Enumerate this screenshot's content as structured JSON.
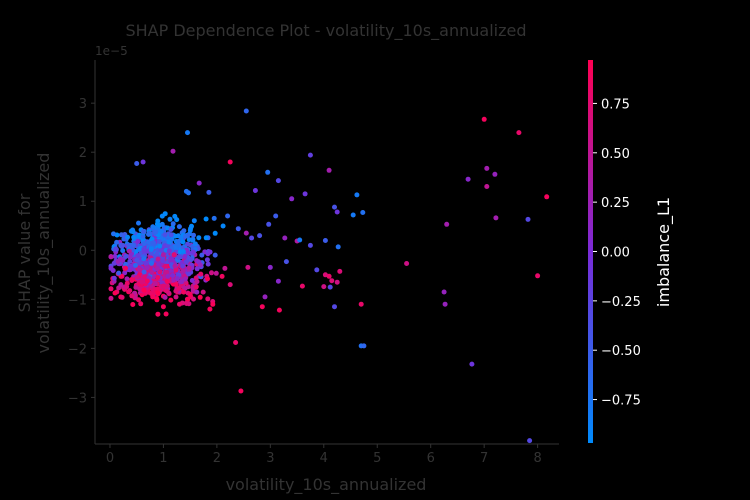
{
  "chart_data": {
    "type": "scatter",
    "title": "SHAP Dependence Plot - volatility_10s_annualized",
    "xlabel": "volatility_10s_annualized",
    "ylabel_lines": [
      "SHAP value for",
      "volatility_10s_annualized"
    ],
    "y_offset_label": "1e−5",
    "xlim": [
      -0.28,
      8.4
    ],
    "ylim": [
      -3.95,
      3.88
    ],
    "x_ticks": [
      0,
      1,
      2,
      3,
      4,
      5,
      6,
      7,
      8
    ],
    "y_ticks": [
      -3,
      -2,
      -1,
      0,
      1,
      2,
      3
    ],
    "x_tick_labels": [
      "0",
      "1",
      "2",
      "3",
      "4",
      "5",
      "6",
      "7",
      "8"
    ],
    "y_tick_labels": [
      "−3",
      "−2",
      "−1",
      "0",
      "1",
      "2",
      "3"
    ],
    "colorbar": {
      "label": "imbalance_L1",
      "range": [
        -0.97,
        0.97
      ],
      "ticks": [
        0.75,
        0.5,
        0.25,
        0.0,
        -0.25,
        -0.5,
        -0.75
      ],
      "tick_labels": [
        "0.75",
        "0.50",
        "0.25",
        "0.00",
        "−0.25",
        "−0.50",
        "−0.75"
      ],
      "low_color": "#008afb",
      "mid_color": "#7a2bd8",
      "high_color": "#ff0052"
    },
    "points": [
      [
        2.55,
        2.84,
        -0.6
      ],
      [
        1.45,
        2.4,
        -0.8
      ],
      [
        1.18,
        2.02,
        0.3
      ],
      [
        0.5,
        1.77,
        -0.5
      ],
      [
        0.62,
        1.8,
        -0.1
      ],
      [
        2.25,
        1.8,
        0.9
      ],
      [
        3.75,
        1.94,
        -0.2
      ],
      [
        4.1,
        1.63,
        0.3
      ],
      [
        2.95,
        1.59,
        -0.7
      ],
      [
        3.15,
        1.42,
        -0.3
      ],
      [
        1.67,
        1.37,
        0.1
      ],
      [
        1.43,
        1.2,
        -0.7
      ],
      [
        1.47,
        1.17,
        -0.7
      ],
      [
        1.85,
        1.18,
        -0.5
      ],
      [
        2.72,
        1.22,
        -0.1
      ],
      [
        3.4,
        1.05,
        0.1
      ],
      [
        3.65,
        1.15,
        -0.1
      ],
      [
        4.62,
        1.13,
        -0.8
      ],
      [
        4.2,
        0.88,
        -0.4
      ],
      [
        4.25,
        0.78,
        -0.1
      ],
      [
        4.55,
        0.72,
        -0.8
      ],
      [
        4.73,
        0.77,
        -0.7
      ],
      [
        3.1,
        0.7,
        -0.5
      ],
      [
        2.97,
        0.53,
        -0.4
      ],
      [
        2.8,
        0.3,
        -0.4
      ],
      [
        2.65,
        0.25,
        -0.3
      ],
      [
        3.5,
        0.19,
        0.4
      ],
      [
        3.27,
        0.25,
        0.2
      ],
      [
        3.55,
        0.21,
        -0.8
      ],
      [
        3.75,
        0.1,
        -0.3
      ],
      [
        4.03,
        0.2,
        -0.5
      ],
      [
        4.27,
        0.07,
        -0.7
      ],
      [
        3.3,
        -0.23,
        -0.4
      ],
      [
        3.0,
        -0.35,
        0.1
      ],
      [
        3.15,
        -0.63,
        0.1
      ],
      [
        3.6,
        -0.73,
        0.8
      ],
      [
        3.87,
        -0.4,
        -0.3
      ],
      [
        4.03,
        -0.5,
        0.7
      ],
      [
        4.1,
        -0.53,
        0.8
      ],
      [
        4.0,
        -0.74,
        0.6
      ],
      [
        4.15,
        -0.62,
        0.7
      ],
      [
        4.25,
        -0.65,
        0.6
      ],
      [
        4.12,
        -0.75,
        -0.3
      ],
      [
        4.3,
        -0.43,
        0.7
      ],
      [
        4.2,
        -1.15,
        -0.3
      ],
      [
        4.7,
        -1.1,
        0.8
      ],
      [
        4.7,
        -1.95,
        -0.7
      ],
      [
        4.75,
        -1.95,
        -0.6
      ],
      [
        5.55,
        -0.27,
        0.6
      ],
      [
        2.35,
        -1.88,
        0.8
      ],
      [
        2.45,
        -2.87,
        0.9
      ],
      [
        3.17,
        -1.22,
        0.9
      ],
      [
        2.85,
        -1.15,
        0.9
      ],
      [
        2.9,
        -0.95,
        0.2
      ],
      [
        2.25,
        -0.7,
        0.7
      ],
      [
        2.58,
        -0.35,
        0.6
      ],
      [
        2.15,
        -0.37,
        0.5
      ],
      [
        1.9,
        -0.46,
        0.6
      ],
      [
        1.87,
        -1.2,
        0.9
      ],
      [
        1.5,
        -0.9,
        0.9
      ],
      [
        1.3,
        -1.1,
        0.8
      ],
      [
        1.0,
        -1.15,
        0.9
      ],
      [
        1.05,
        -1.3,
        0.9
      ],
      [
        0.8,
        -0.95,
        0.9
      ],
      [
        2.4,
        0.44,
        -0.5
      ],
      [
        2.55,
        0.35,
        0.3
      ],
      [
        2.2,
        0.7,
        -0.6
      ],
      [
        1.95,
        0.65,
        -0.7
      ],
      [
        6.25,
        -0.85,
        0.2
      ],
      [
        6.27,
        -1.1,
        0.2
      ],
      [
        6.3,
        0.53,
        0.3
      ],
      [
        6.7,
        1.45,
        0.1
      ],
      [
        6.77,
        -2.32,
        -0.1
      ],
      [
        7.0,
        2.67,
        0.9
      ],
      [
        7.05,
        1.67,
        0.3
      ],
      [
        7.2,
        1.55,
        0.2
      ],
      [
        7.05,
        1.3,
        0.5
      ],
      [
        7.22,
        0.66,
        0.3
      ],
      [
        7.65,
        2.4,
        0.8
      ],
      [
        7.82,
        0.63,
        -0.3
      ],
      [
        8.0,
        -0.52,
        0.8
      ],
      [
        8.17,
        1.09,
        0.9
      ],
      [
        7.85,
        -3.88,
        -0.3
      ]
    ]
  }
}
